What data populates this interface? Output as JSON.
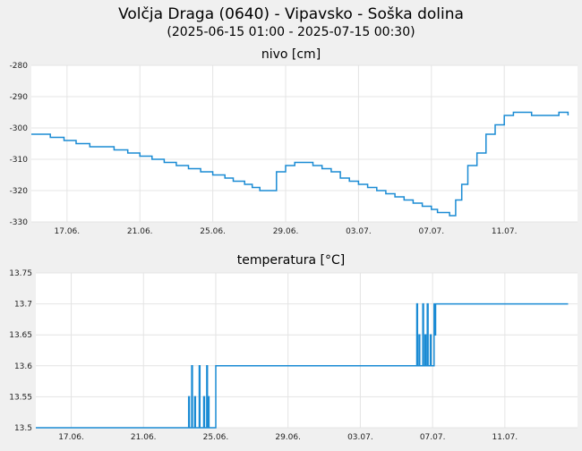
{
  "header": {
    "title": "Volčja Draga (0640) - Vipavsko - Soška dolina",
    "subtitle": "(2025-06-15 01:00 - 2025-07-15 00:30)"
  },
  "line_color": "#1a8bd4",
  "chart_data": [
    {
      "type": "line",
      "title": "nivo [cm]",
      "xlabel": "",
      "ylabel": "",
      "ylim": [
        -330,
        -280
      ],
      "y_ticks": [
        "-280",
        "-290",
        "-300",
        "-310",
        "-320",
        "-330"
      ],
      "x_ticks": [
        "17.06.",
        "21.06.",
        "25.06.",
        "29.06.",
        "03.07.",
        "07.07.",
        "11.07."
      ],
      "x_range": [
        "2025-06-15 01:00",
        "2025-07-15 00:30"
      ],
      "grid": true,
      "step": true,
      "series": [
        {
          "x": [
            "2025-06-15 01:00",
            "2025-06-15 12:00",
            "2025-06-16 02:00",
            "2025-06-16 20:00",
            "2025-06-17 12:00",
            "2025-06-18 06:00",
            "2025-06-18 22:00",
            "2025-06-19 14:00",
            "2025-06-20 08:00",
            "2025-06-21 00:00",
            "2025-06-21 16:00",
            "2025-06-22 08:00",
            "2025-06-23 00:00",
            "2025-06-23 16:00",
            "2025-06-24 08:00",
            "2025-06-25 00:00",
            "2025-06-25 16:00",
            "2025-06-26 03:00",
            "2025-06-26 10:00",
            "2025-06-26 18:00",
            "2025-06-27 04:00",
            "2025-06-27 14:00",
            "2025-06-28 00:00",
            "2025-06-28 12:00",
            "2025-06-29 00:00",
            "2025-06-29 12:00",
            "2025-06-30 00:00",
            "2025-06-30 12:00",
            "2025-07-01 00:00",
            "2025-07-01 12:00",
            "2025-07-02 00:00",
            "2025-07-02 12:00",
            "2025-07-03 00:00",
            "2025-07-03 12:00",
            "2025-07-04 00:00",
            "2025-07-04 12:00",
            "2025-07-05 00:00",
            "2025-07-05 12:00",
            "2025-07-06 00:00",
            "2025-07-06 12:00",
            "2025-07-06 18:00",
            "2025-07-07 00:00",
            "2025-07-07 08:00",
            "2025-07-07 16:00",
            "2025-07-08 00:00",
            "2025-07-08 08:00",
            "2025-07-08 16:00",
            "2025-07-09 00:00",
            "2025-07-09 12:00",
            "2025-07-10 00:00",
            "2025-07-10 12:00",
            "2025-07-11 00:00",
            "2025-07-11 12:00",
            "2025-07-12 00:00",
            "2025-07-12 12:00",
            "2025-07-13 00:00",
            "2025-07-13 12:00",
            "2025-07-14 00:00",
            "2025-07-14 12:00"
          ],
          "y": [
            -302,
            -302,
            -303,
            -304,
            -305,
            -306,
            -306,
            -307,
            -308,
            -309,
            -310,
            -311,
            -312,
            -313,
            -314,
            -315,
            -316,
            -317,
            -317,
            -318,
            -319,
            -320,
            -320,
            -314,
            -312,
            -311,
            -311,
            -312,
            -313,
            -314,
            -316,
            -317,
            -318,
            -319,
            -320,
            -321,
            -322,
            -323,
            -324,
            -325,
            -325,
            -326,
            -327,
            -327,
            -328,
            -323,
            -318,
            -312,
            -308,
            -302,
            -299,
            -296,
            -295,
            -295,
            -296,
            -296,
            -296,
            -295,
            -296
          ]
        }
      ]
    },
    {
      "type": "line",
      "title": "temperatura [°C]",
      "xlabel": "",
      "ylabel": "",
      "ylim": [
        13.5,
        13.75
      ],
      "y_ticks": [
        "13.75",
        "13.7",
        "13.65",
        "13.6",
        "13.55",
        "13.5"
      ],
      "x_ticks": [
        "17.06.",
        "21.06.",
        "25.06.",
        "29.06.",
        "03.07.",
        "07.07.",
        "11.07."
      ],
      "x_range": [
        "2025-06-15 01:00",
        "2025-07-15 00:30"
      ],
      "grid": true,
      "step": true,
      "series": [
        {
          "x": [
            "2025-06-15 01:00",
            "2025-06-23 12:00",
            "2025-06-23 13:00",
            "2025-06-23 16:00",
            "2025-06-23 17:00",
            "2025-06-23 20:00",
            "2025-06-23 21:00",
            "2025-06-24 02:00",
            "2025-06-24 03:00",
            "2025-06-24 08:00",
            "2025-06-24 09:00",
            "2025-06-24 12:00",
            "2025-06-24 13:00",
            "2025-06-24 14:00",
            "2025-06-24 15:00",
            "2025-06-24 22:00",
            "2025-06-25 00:00",
            "2025-07-06 03:00",
            "2025-07-06 04:00",
            "2025-07-06 06:00",
            "2025-07-06 07:00",
            "2025-07-06 11:00",
            "2025-07-06 12:00",
            "2025-07-06 14:00",
            "2025-07-06 15:00",
            "2025-07-06 17:00",
            "2025-07-06 18:00",
            "2025-07-06 21:00",
            "2025-07-06 22:00",
            "2025-07-07 02:00",
            "2025-07-07 03:00",
            "2025-07-07 04:00",
            "2025-07-14 12:00"
          ],
          "y": [
            13.5,
            13.55,
            13.5,
            13.6,
            13.5,
            13.55,
            13.5,
            13.6,
            13.5,
            13.55,
            13.5,
            13.6,
            13.5,
            13.55,
            13.5,
            13.5,
            13.6,
            13.7,
            13.6,
            13.65,
            13.6,
            13.7,
            13.6,
            13.65,
            13.6,
            13.7,
            13.6,
            13.65,
            13.6,
            13.7,
            13.65,
            13.7,
            13.7
          ]
        }
      ]
    }
  ]
}
